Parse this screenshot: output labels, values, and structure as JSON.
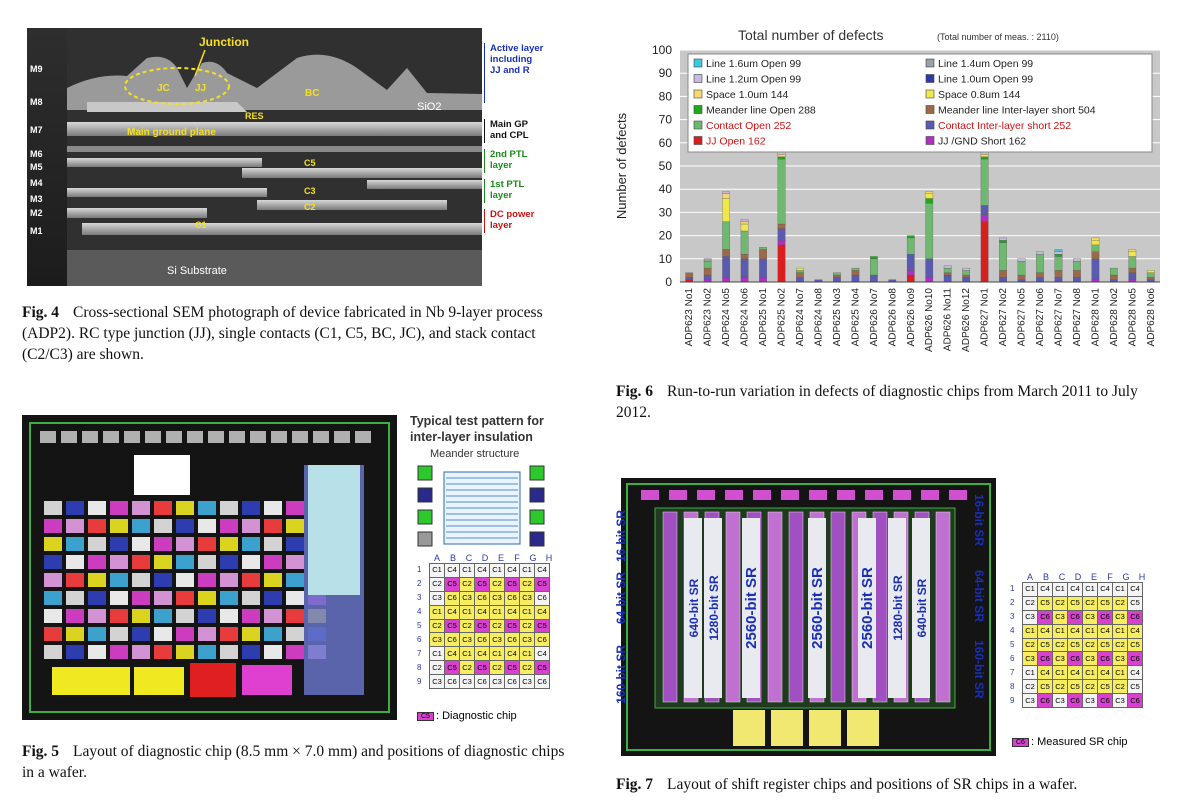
{
  "fig4": {
    "caption_label": "Fig. 4",
    "caption": "Cross-sectional SEM photograph of device fabricated in Nb 9-layer process (ADP2). RC type junction (JJ), single contacts (C1, C5, BC, JC), and stack contact (C2/C3) are shown.",
    "layers": [
      "M9",
      "M8",
      "M7",
      "M6",
      "M5",
      "M4",
      "M3",
      "M2",
      "M1"
    ],
    "labels": {
      "junction": "Junction",
      "jc": "JC",
      "jj": "JJ",
      "bc": "BC",
      "res": "RES",
      "sio2": "SiO2",
      "ground": "Main ground plane",
      "c5": "C5",
      "c3": "C3",
      "c2": "C2",
      "c1": "C1",
      "substrate": "Si Substrate"
    },
    "right_labels": [
      {
        "text": "Active layer including JJ and R",
        "color": "#1a2fb8"
      },
      {
        "text": "Main GP and CPL",
        "color": "#111111"
      },
      {
        "text": "2nd PTL layer",
        "color": "#1a8a1a"
      },
      {
        "text": "1st PTL layer",
        "color": "#1a8a1a"
      },
      {
        "text": "DC power layer",
        "color": "#d01010"
      }
    ]
  },
  "fig5": {
    "caption_label": "Fig. 5",
    "caption": "Layout of diagnostic chip (8.5 mm × 7.0 mm) and positions of diagnostic chips in a wafer.",
    "pattern_title": "Typical test pattern for inter-layer insulation",
    "meander": "Meander structure",
    "legend": ": Diagnostic chip",
    "legend_code": "C5",
    "cols": [
      "A",
      "B",
      "C",
      "D",
      "E",
      "F",
      "G",
      "H"
    ],
    "rows": [
      [
        "C1",
        "C4",
        "C1",
        "C4",
        "C1",
        "C4",
        "C1",
        "C4"
      ],
      [
        "C2",
        "C5",
        "C2",
        "C5",
        "C2",
        "C5",
        "C2",
        "C5"
      ],
      [
        "C3",
        "C6",
        "C3",
        "C6",
        "C3",
        "C6",
        "C3",
        "C6"
      ],
      [
        "C1",
        "C4",
        "C1",
        "C4",
        "C1",
        "C4",
        "C1",
        "C4"
      ],
      [
        "C2",
        "C5",
        "C2",
        "C5",
        "C2",
        "C5",
        "C2",
        "C5"
      ],
      [
        "C3",
        "C6",
        "C3",
        "C6",
        "C3",
        "C6",
        "C3",
        "C6"
      ],
      [
        "C1",
        "C4",
        "C1",
        "C4",
        "C1",
        "C4",
        "C1",
        "C4"
      ],
      [
        "C2",
        "C5",
        "C2",
        "C5",
        "C2",
        "C5",
        "C2",
        "C5"
      ],
      [
        "C3",
        "C6",
        "C3",
        "C6",
        "C3",
        "C6",
        "C3",
        "C6"
      ]
    ]
  },
  "fig6": {
    "caption_label": "Fig. 6",
    "caption": "Run-to-run variation in defects of diagnostic chips from March 2011 to July 2012."
  },
  "fig7": {
    "caption_label": "Fig. 7",
    "caption": "Layout of shift register chips and positions of SR chips in a wafer.",
    "legend": ": Measured SR chip",
    "legend_code": "C6",
    "side_labels": [
      "16-bit SR",
      "64-bit SR",
      "160-bit SR"
    ],
    "center_labels": [
      "640-bit SR",
      "1280-bit SR",
      "2560-bit SR",
      "2560-bit SR",
      "2560-bit SR",
      "1280-bit SR",
      "640-bit SR"
    ],
    "cols": [
      "A",
      "B",
      "C",
      "D",
      "E",
      "F",
      "G",
      "H"
    ],
    "rows": [
      [
        "C1",
        "C4",
        "C1",
        "C4",
        "C1",
        "C4",
        "C1",
        "C4"
      ],
      [
        "C2",
        "C5",
        "C2",
        "C5",
        "C2",
        "C5",
        "C2",
        "C5"
      ],
      [
        "C3",
        "C6",
        "C3",
        "C6",
        "C3",
        "C6",
        "C3",
        "C6"
      ],
      [
        "C1",
        "C4",
        "C1",
        "C4",
        "C1",
        "C4",
        "C1",
        "C4"
      ],
      [
        "C2",
        "C5",
        "C2",
        "C5",
        "C2",
        "C5",
        "C2",
        "C5"
      ],
      [
        "C3",
        "C6",
        "C3",
        "C6",
        "C3",
        "C6",
        "C3",
        "C6"
      ],
      [
        "C1",
        "C4",
        "C1",
        "C4",
        "C1",
        "C4",
        "C1",
        "C4"
      ],
      [
        "C2",
        "C5",
        "C2",
        "C5",
        "C2",
        "C5",
        "C2",
        "C5"
      ],
      [
        "C3",
        "C6",
        "C3",
        "C6",
        "C3",
        "C6",
        "C3",
        "C6"
      ]
    ]
  },
  "chart_data": {
    "type": "bar",
    "stacked": true,
    "title": "Total number of defects",
    "subtitle": "(Total number of meas. : 2110)",
    "ylabel": "Number of defects",
    "ylim": [
      0,
      100
    ],
    "yticks": [
      0,
      10,
      20,
      30,
      40,
      50,
      60,
      70,
      80,
      90,
      100
    ],
    "grid": true,
    "legend_placement": "top",
    "categories": [
      "ADP623 No1",
      "ADP623 No2",
      "ADP624 No5",
      "ADP624 No6",
      "ADP625 No1",
      "ADP625 No2",
      "ADP624 No7",
      "ADP624 No8",
      "ADP625 No3",
      "ADP625 No4",
      "ADP626 No7",
      "ADP626 No8",
      "ADP626 No9",
      "ADP626 No10",
      "ADP626 No11",
      "ADP626 No12",
      "ADP627 No1",
      "ADP627 No2",
      "ADP627 No5",
      "ADP627 No6",
      "ADP627 No7",
      "ADP627 No8",
      "ADP628 No1",
      "ADP628 No2",
      "ADP628 No5",
      "ADP628 No6"
    ],
    "series": [
      {
        "name": "JJ Open 162",
        "color": "#d81e1e",
        "values": [
          1,
          0,
          0,
          0,
          0,
          16,
          0,
          0,
          0,
          0,
          0,
          0,
          3,
          0,
          0,
          0,
          26,
          0,
          0,
          0,
          0,
          0,
          0,
          0,
          0,
          0
        ]
      },
      {
        "name": "JJ /GND Short 162",
        "color": "#b02fc0",
        "values": [
          0,
          1,
          2,
          2,
          2,
          2,
          0,
          0,
          0,
          0,
          0,
          0,
          2,
          2,
          0,
          0,
          3,
          0,
          0,
          0,
          0,
          0,
          1,
          0,
          1,
          0
        ]
      },
      {
        "name": "Contact Inter-layer short 252",
        "color": "#5a5ab0",
        "values": [
          1,
          2,
          9,
          8,
          8,
          5,
          2,
          1,
          2,
          3,
          3,
          1,
          7,
          8,
          3,
          2,
          4,
          2,
          1,
          2,
          2,
          2,
          9,
          1,
          3,
          1
        ]
      },
      {
        "name": "Meander line Inter-layer short 504",
        "color": "#9c6a4a",
        "values": [
          2,
          3,
          3,
          2,
          4,
          2,
          2,
          0,
          1,
          2,
          0,
          0,
          0,
          0,
          1,
          1,
          0,
          3,
          2,
          2,
          3,
          3,
          3,
          2,
          2,
          1
        ]
      },
      {
        "name": "Contact Open 252",
        "color": "#6fb870",
        "values": [
          0,
          3,
          12,
          10,
          1,
          28,
          1,
          0,
          1,
          1,
          7,
          0,
          7,
          24,
          2,
          2,
          20,
          12,
          6,
          8,
          6,
          4,
          3,
          3,
          5,
          2
        ]
      },
      {
        "name": "Meander line Open 288",
        "color": "#1ea81e",
        "values": [
          0,
          0,
          0,
          0,
          0,
          1,
          0,
          0,
          0,
          0,
          1,
          0,
          1,
          2,
          0,
          0,
          1,
          1,
          0,
          0,
          1,
          0,
          0,
          0,
          0,
          0
        ]
      },
      {
        "name": "Space 0.8um 144",
        "color": "#f0e84a",
        "values": [
          0,
          0,
          10,
          3,
          0,
          0,
          1,
          0,
          0,
          0,
          0,
          0,
          0,
          2,
          0,
          0,
          1,
          0,
          0,
          0,
          0,
          0,
          2,
          0,
          2,
          1
        ]
      },
      {
        "name": "Space 1.0um 144",
        "color": "#f5d870",
        "values": [
          0,
          0,
          2,
          1,
          0,
          1,
          0,
          0,
          0,
          0,
          0,
          0,
          0,
          1,
          0,
          0,
          0,
          0,
          0,
          0,
          0,
          0,
          1,
          0,
          1,
          0
        ]
      },
      {
        "name": "Line 1.0um Open 99",
        "color": "#2a3aa8",
        "values": [
          0,
          0,
          0,
          0,
          0,
          0,
          0,
          0,
          0,
          0,
          0,
          0,
          0,
          0,
          0,
          0,
          0,
          0,
          0,
          0,
          0,
          0,
          0,
          0,
          0,
          0
        ]
      },
      {
        "name": "Line 1.2um Open 99",
        "color": "#c8b8e0",
        "values": [
          0,
          0,
          1,
          1,
          0,
          1,
          0,
          0,
          0,
          0,
          0,
          0,
          0,
          0,
          1,
          1,
          1,
          1,
          1,
          1,
          1,
          1,
          0,
          0,
          0,
          0
        ]
      },
      {
        "name": "Line 1.4um Open 99",
        "color": "#9aa0a8",
        "values": [
          0,
          1,
          0,
          0,
          0,
          0,
          0,
          0,
          0,
          0,
          0,
          0,
          0,
          0,
          0,
          0,
          0,
          0,
          0,
          0,
          0,
          0,
          0,
          0,
          0,
          0
        ]
      },
      {
        "name": "Line 1.6um Open 99",
        "color": "#3ec8e0",
        "values": [
          0,
          0,
          0,
          0,
          0,
          0,
          0,
          0,
          0,
          0,
          0,
          0,
          0,
          0,
          0,
          0,
          0,
          0,
          0,
          0,
          1,
          0,
          0,
          0,
          0,
          0
        ]
      }
    ]
  }
}
